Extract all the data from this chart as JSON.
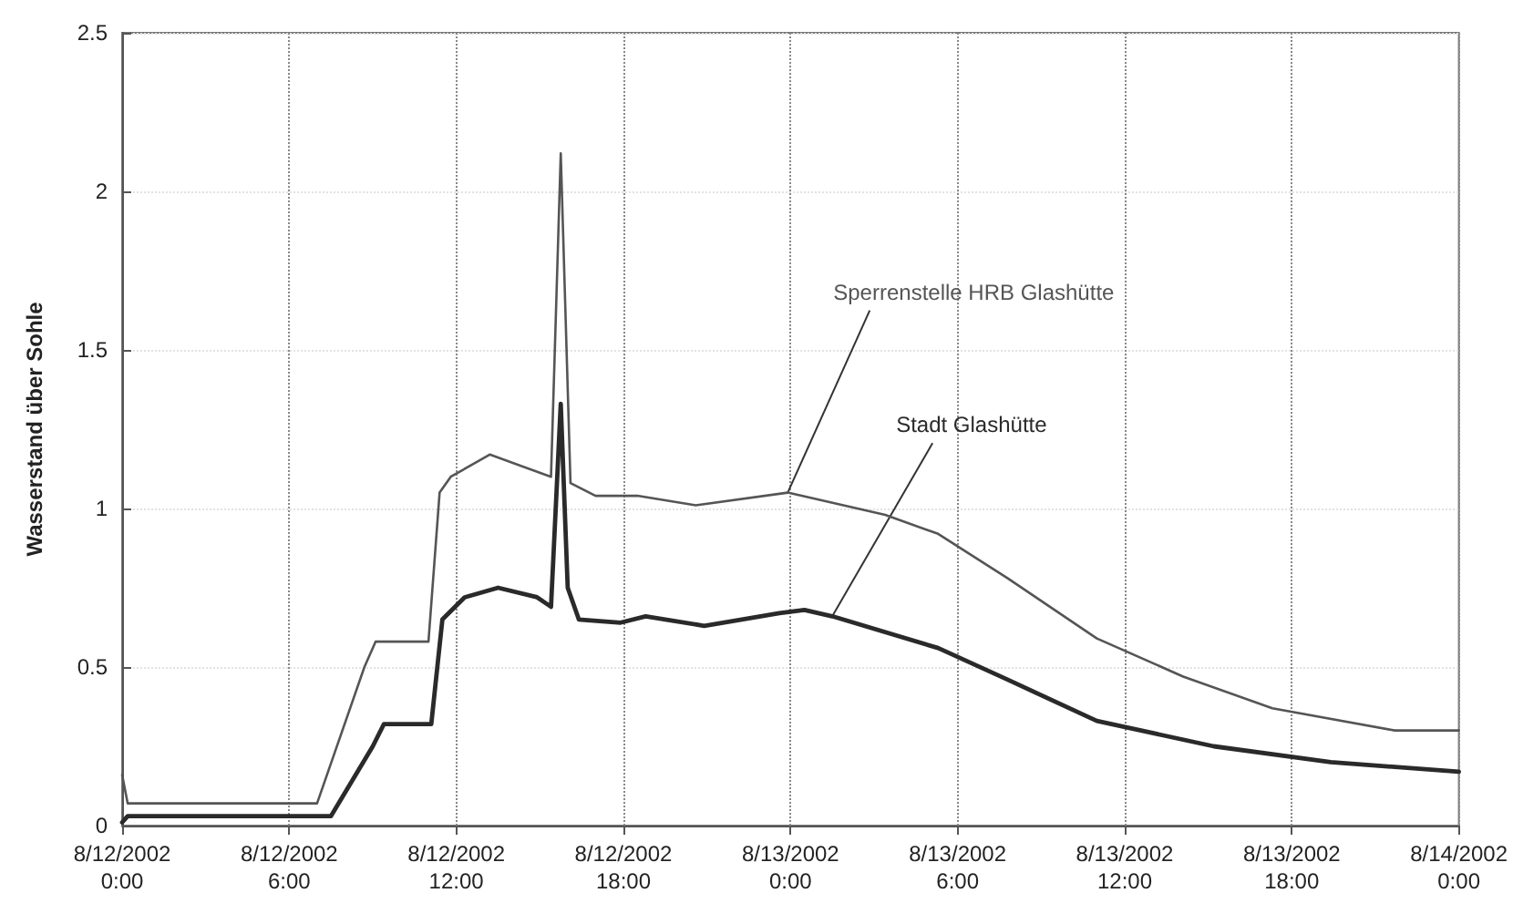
{
  "chart_data": {
    "type": "line",
    "ylabel": "Wasserstand über Sohle",
    "xlim": [
      "2002-08-12T00:00",
      "2002-08-14T00:00"
    ],
    "ylim": [
      0,
      2.5
    ],
    "xticks": [
      {
        "value": "2002-08-12T00:00",
        "label": "8/12/2002 0:00"
      },
      {
        "value": "2002-08-12T06:00",
        "label": "8/12/2002 6:00"
      },
      {
        "value": "2002-08-12T12:00",
        "label": "8/12/2002 12:00"
      },
      {
        "value": "2002-08-12T18:00",
        "label": "8/12/2002 18:00"
      },
      {
        "value": "2002-08-13T00:00",
        "label": "8/13/2002 0:00"
      },
      {
        "value": "2002-08-13T06:00",
        "label": "8/13/2002 6:00"
      },
      {
        "value": "2002-08-13T12:00",
        "label": "8/13/2002 12:00"
      },
      {
        "value": "2002-08-13T18:00",
        "label": "8/13/2002 18:00"
      },
      {
        "value": "2002-08-14T00:00",
        "label": "8/14/2002 0:00"
      }
    ],
    "yticks": [
      0,
      0.5,
      1,
      1.5,
      2,
      2.5
    ],
    "grid": true,
    "legend": false,
    "marker": "none",
    "line_style": "solid",
    "series": [
      {
        "name": "Sperrenstelle HRB Glashütte",
        "color": "#555555",
        "x": [
          "2002-08-12T00:00",
          "2002-08-12T00:12",
          "2002-08-12T07:00",
          "2002-08-12T08:42",
          "2002-08-12T09:06",
          "2002-08-12T11:00",
          "2002-08-12T11:24",
          "2002-08-12T11:48",
          "2002-08-12T13:12",
          "2002-08-12T15:24",
          "2002-08-12T15:45",
          "2002-08-12T16:06",
          "2002-08-12T17:00",
          "2002-08-12T18:30",
          "2002-08-12T20:36",
          "2002-08-12T23:54",
          "2002-08-13T03:24",
          "2002-08-13T05:18",
          "2002-08-13T07:48",
          "2002-08-13T11:00",
          "2002-08-13T14:06",
          "2002-08-13T17:18",
          "2002-08-13T21:42",
          "2002-08-14T00:00"
        ],
        "values": [
          0.16,
          0.07,
          0.07,
          0.5,
          0.58,
          0.58,
          1.05,
          1.1,
          1.17,
          1.1,
          2.12,
          1.08,
          1.04,
          1.04,
          1.01,
          1.05,
          0.98,
          0.92,
          0.78,
          0.59,
          0.47,
          0.37,
          0.3,
          0.3
        ]
      },
      {
        "name": "Stadt Glashütte",
        "color": "#2a2a2a",
        "x": [
          "2002-08-12T00:00",
          "2002-08-12T00:12",
          "2002-08-12T07:30",
          "2002-08-12T09:00",
          "2002-08-12T09:24",
          "2002-08-12T11:06",
          "2002-08-12T11:30",
          "2002-08-12T12:18",
          "2002-08-12T13:30",
          "2002-08-12T14:54",
          "2002-08-12T15:24",
          "2002-08-12T15:45",
          "2002-08-12T16:00",
          "2002-08-12T16:24",
          "2002-08-12T17:54",
          "2002-08-12T18:48",
          "2002-08-12T20:54",
          "2002-08-12T23:36",
          "2002-08-13T00:30",
          "2002-08-13T01:30",
          "2002-08-13T05:18",
          "2002-08-13T07:48",
          "2002-08-13T11:00",
          "2002-08-13T15:12",
          "2002-08-13T19:24",
          "2002-08-14T00:00"
        ],
        "values": [
          0.01,
          0.03,
          0.03,
          0.25,
          0.32,
          0.32,
          0.65,
          0.72,
          0.75,
          0.72,
          0.69,
          1.33,
          0.75,
          0.65,
          0.64,
          0.66,
          0.63,
          0.67,
          0.68,
          0.66,
          0.56,
          0.46,
          0.33,
          0.25,
          0.2,
          0.17
        ]
      }
    ]
  }
}
